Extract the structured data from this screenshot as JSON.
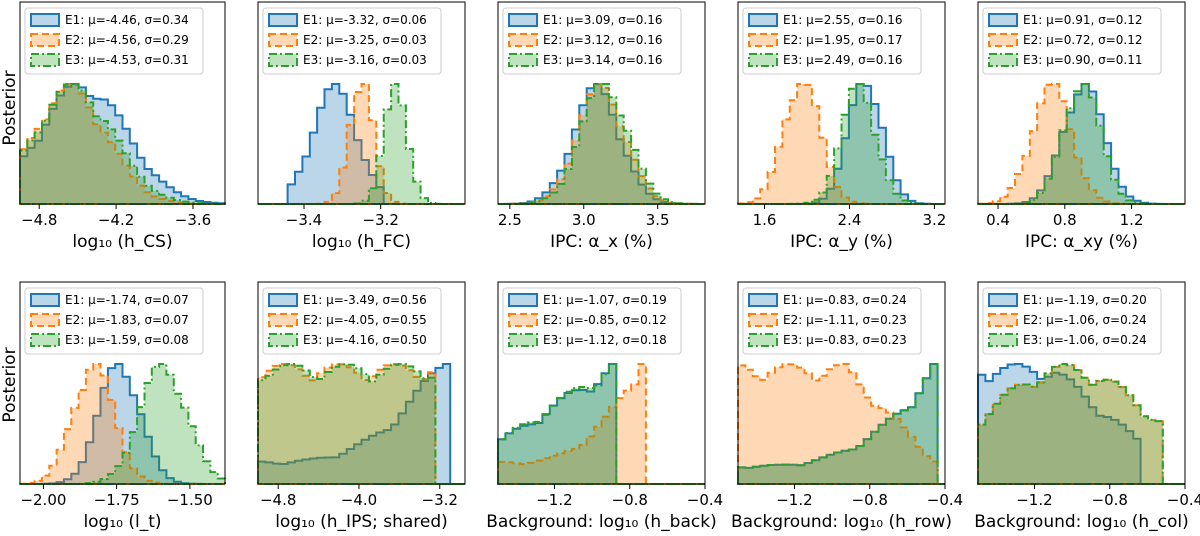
{
  "figure": {
    "ylabel": "Posterior",
    "colors": {
      "E1": "#1f77b4",
      "E2": "#ff7f0e",
      "E3": "#2ca02c"
    }
  },
  "chart_data": [
    {
      "type": "histogram",
      "xlabel": "log₁₀ (h_CS)",
      "xrange": [
        -4.95,
        -3.35
      ],
      "ticks": [
        -4.8,
        -4.2,
        -3.6
      ],
      "tick_labels": [
        "−4.8",
        "−4.2",
        "−3.6"
      ],
      "legend": [
        "E1: μ=-4.46, σ=0.34",
        "E2: μ=-4.56, σ=0.29",
        "E3: μ=-4.53, σ=0.31"
      ],
      "series": [
        {
          "name": "E1",
          "mu": -4.46,
          "sigma": 0.34,
          "trunc": [
            -4.95,
            -3.3
          ]
        },
        {
          "name": "E2",
          "mu": -4.56,
          "sigma": 0.29,
          "trunc": [
            -4.95,
            -3.3
          ]
        },
        {
          "name": "E3",
          "mu": -4.53,
          "sigma": 0.31,
          "trunc": [
            -4.95,
            -3.3
          ]
        }
      ]
    },
    {
      "type": "histogram",
      "xlabel": "log₁₀ (h_FC)",
      "xrange": [
        -3.52,
        -2.98
      ],
      "ticks": [
        -3.4,
        -3.2
      ],
      "tick_labels": [
        "−3.4",
        "−3.2"
      ],
      "legend": [
        "E1: μ=-3.32, σ=0.06",
        "E2: μ=-3.25, σ=0.03",
        "E3: μ=-3.16, σ=0.03"
      ],
      "series": [
        {
          "name": "E1",
          "mu": -3.32,
          "sigma": 0.06,
          "trunc": [
            -3.45,
            -3.2
          ]
        },
        {
          "name": "E2",
          "mu": -3.25,
          "sigma": 0.03
        },
        {
          "name": "E3",
          "mu": -3.16,
          "sigma": 0.03
        }
      ]
    },
    {
      "type": "histogram",
      "xlabel": "IPC: α_x (%)",
      "xrange": [
        2.42,
        3.82
      ],
      "ticks": [
        2.5,
        3.0,
        3.5
      ],
      "tick_labels": [
        "2.5",
        "3.0",
        "3.5"
      ],
      "legend": [
        "E1: μ=3.09, σ=0.16",
        "E2: μ=3.12, σ=0.16",
        "E3: μ=3.14, σ=0.16"
      ],
      "series": [
        {
          "name": "E1",
          "mu": 3.09,
          "sigma": 0.16
        },
        {
          "name": "E2",
          "mu": 3.12,
          "sigma": 0.16
        },
        {
          "name": "E3",
          "mu": 3.14,
          "sigma": 0.16
        }
      ]
    },
    {
      "type": "histogram",
      "xlabel": "IPC: α_y (%)",
      "xrange": [
        1.35,
        3.3
      ],
      "ticks": [
        1.6,
        2.4,
        3.2
      ],
      "tick_labels": [
        "1.6",
        "2.4",
        "3.2"
      ],
      "legend": [
        "E1: μ=2.55, σ=0.16",
        "E2: μ=1.95, σ=0.17",
        "E3: μ=2.49, σ=0.16"
      ],
      "series": [
        {
          "name": "E1",
          "mu": 2.55,
          "sigma": 0.16
        },
        {
          "name": "E2",
          "mu": 1.95,
          "sigma": 0.17
        },
        {
          "name": "E3",
          "mu": 2.49,
          "sigma": 0.16
        }
      ]
    },
    {
      "type": "histogram",
      "xlabel": "IPC: α_xy (%)",
      "xrange": [
        0.28,
        1.52
      ],
      "ticks": [
        0.4,
        0.8,
        1.2
      ],
      "tick_labels": [
        "0.4",
        "0.8",
        "1.2"
      ],
      "legend": [
        "E1: μ=0.91, σ=0.12",
        "E2: μ=0.72, σ=0.12",
        "E3: μ=0.90, σ=0.11"
      ],
      "series": [
        {
          "name": "E1",
          "mu": 0.91,
          "sigma": 0.12
        },
        {
          "name": "E2",
          "mu": 0.72,
          "sigma": 0.12
        },
        {
          "name": "E3",
          "mu": 0.9,
          "sigma": 0.11
        }
      ]
    },
    {
      "type": "histogram",
      "xlabel": "log₁₀ (l_t)",
      "xrange": [
        -2.08,
        -1.38
      ],
      "ticks": [
        -2.0,
        -1.75,
        -1.5
      ],
      "tick_labels": [
        "−2.00",
        "−1.75",
        "−1.50"
      ],
      "legend": [
        "E1: μ=-1.74, σ=0.07",
        "E2: μ=-1.83, σ=0.07",
        "E3: μ=-1.59, σ=0.08"
      ],
      "series": [
        {
          "name": "E1",
          "mu": -1.74,
          "sigma": 0.07
        },
        {
          "name": "E2",
          "mu": -1.83,
          "sigma": 0.07
        },
        {
          "name": "E3",
          "mu": -1.59,
          "sigma": 0.08
        }
      ]
    },
    {
      "type": "histogram",
      "xlabel": "log₁₀ (h_IPS; shared)",
      "xrange": [
        -5.0,
        -2.95
      ],
      "ticks": [
        -4.8,
        -4.0,
        -3.2
      ],
      "tick_labels": [
        "−4.8",
        "−4.0",
        "−3.2"
      ],
      "legend": [
        "E1: μ=-3.49, σ=0.56",
        "E2: μ=-4.05, σ=0.55",
        "E3: μ=-4.16, σ=0.50"
      ],
      "series": [
        {
          "name": "E1",
          "mu": -3.49,
          "sigma": 0.56,
          "trunc": [
            -5.0,
            -3.08
          ],
          "shape": "peak-right"
        },
        {
          "name": "E2",
          "mu": -4.05,
          "sigma": 0.55,
          "trunc": [
            -5.0,
            -3.22
          ],
          "shape": "flat"
        },
        {
          "name": "E3",
          "mu": -4.16,
          "sigma": 0.5,
          "trunc": [
            -5.0,
            -3.22
          ],
          "shape": "flat"
        }
      ]
    },
    {
      "type": "histogram",
      "xlabel": "Background: log₁₀ (h_back)",
      "xrange": [
        -1.5,
        -0.4
      ],
      "ticks": [
        -1.2,
        -0.8,
        -0.4
      ],
      "tick_labels": [
        "−1.2",
        "−0.8",
        "−0.4"
      ],
      "legend": [
        "E1: μ=-1.07, σ=0.19",
        "E2: μ=-0.85, σ=0.12",
        "E3: μ=-1.12, σ=0.18"
      ],
      "series": [
        {
          "name": "E1",
          "mu": -1.07,
          "sigma": 0.19,
          "trunc": [
            -1.5,
            -0.88
          ],
          "shape": "ramp"
        },
        {
          "name": "E2",
          "mu": -0.85,
          "sigma": 0.12,
          "trunc": [
            -1.5,
            -0.7
          ],
          "shape": "peak-right"
        },
        {
          "name": "E3",
          "mu": -1.12,
          "sigma": 0.18,
          "trunc": [
            -1.5,
            -0.88
          ],
          "shape": "ramp"
        }
      ]
    },
    {
      "type": "histogram",
      "xlabel": "Background: log₁₀ (h_row)",
      "xrange": [
        -1.5,
        -0.4
      ],
      "ticks": [
        -1.2,
        -0.8,
        -0.4
      ],
      "tick_labels": [
        "−1.2",
        "−0.8",
        "−0.4"
      ],
      "legend": [
        "E1: μ=-0.83, σ=0.24",
        "E2: μ=-1.11, σ=0.23",
        "E3: μ=-0.83, σ=0.23"
      ],
      "series": [
        {
          "name": "E1",
          "mu": -0.83,
          "sigma": 0.24,
          "trunc": [
            -1.5,
            -0.45
          ],
          "shape": "peak-right"
        },
        {
          "name": "E2",
          "mu": -1.11,
          "sigma": 0.23,
          "trunc": [
            -1.5,
            -0.45
          ],
          "shape": "flat-decay"
        },
        {
          "name": "E3",
          "mu": -0.83,
          "sigma": 0.23,
          "trunc": [
            -1.5,
            -0.45
          ],
          "shape": "peak-right"
        }
      ]
    },
    {
      "type": "histogram",
      "xlabel": "Background: log₁₀ (h_col)",
      "xrange": [
        -1.5,
        -0.4
      ],
      "ticks": [
        -1.2,
        -0.8,
        -0.4
      ],
      "tick_labels": [
        "−1.2",
        "−0.8",
        "−0.4"
      ],
      "legend": [
        "E1: μ=-1.19, σ=0.20",
        "E2: μ=-1.06, σ=0.24",
        "E3: μ=-1.06, σ=0.24"
      ],
      "series": [
        {
          "name": "E1",
          "mu": -1.19,
          "sigma": 0.2,
          "trunc": [
            -1.5,
            -0.62
          ],
          "shape": "decay"
        },
        {
          "name": "E2",
          "mu": -1.06,
          "sigma": 0.24,
          "trunc": [
            -1.5,
            -0.5
          ],
          "shape": "broad"
        },
        {
          "name": "E3",
          "mu": -1.06,
          "sigma": 0.24,
          "trunc": [
            -1.5,
            -0.5
          ],
          "shape": "broad"
        }
      ]
    }
  ]
}
